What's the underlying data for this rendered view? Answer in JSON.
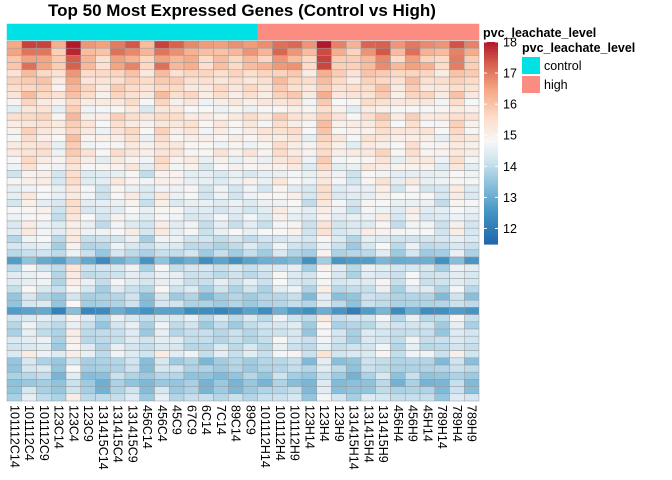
{
  "chart_data": {
    "type": "heatmap",
    "title": "Top 50 Most Expressed Genes (Control vs High)",
    "columns": [
      "101112C14",
      "101112C4",
      "101112C9",
      "123C14",
      "123C4",
      "123C9",
      "131415C14",
      "131415C4",
      "131415C9",
      "456C14",
      "456C4",
      "45C9",
      "67C9",
      "6C14",
      "7C14",
      "89C14",
      "89C9",
      "101112H14",
      "101112H4",
      "101112H9",
      "123H14",
      "123H4",
      "123H9",
      "131415H14",
      "131415H4",
      "131415H9",
      "456H4",
      "456H9",
      "45H14",
      "789H14",
      "789H4",
      "789H9"
    ],
    "annotation": {
      "name": "pvc_leachate_level",
      "values": [
        "control",
        "control",
        "control",
        "control",
        "control",
        "control",
        "control",
        "control",
        "control",
        "control",
        "control",
        "control",
        "control",
        "control",
        "control",
        "control",
        "control",
        "high",
        "high",
        "high",
        "high",
        "high",
        "high",
        "high",
        "high",
        "high",
        "high",
        "high",
        "high",
        "high",
        "high",
        "high"
      ],
      "levels": [
        {
          "label": "control",
          "color": "#00E1E6"
        },
        {
          "label": "high",
          "color": "#FA8C82"
        }
      ]
    },
    "row_count": 50,
    "column_offsets": [
      0.3,
      1.2,
      0.9,
      0.0,
      1.8,
      0.4,
      0.0,
      0.8,
      0.9,
      0.0,
      1.2,
      0.6,
      0.5,
      0.0,
      0.3,
      0.2,
      0.4,
      0.3,
      1.0,
      0.8,
      0.0,
      1.7,
      0.3,
      0.0,
      0.7,
      1.1,
      0.2,
      0.9,
      0.4,
      0.0,
      1.1,
      0.3
    ],
    "row_base": [
      16.4,
      16.0,
      15.6,
      15.7,
      15.4,
      15.3,
      15.2,
      15.2,
      14.9,
      14.6,
      15.1,
      14.9,
      14.9,
      14.8,
      14.7,
      14.9,
      14.7,
      14.6,
      14.3,
      14.5,
      14.3,
      14.4,
      14.3,
      14.3,
      14.3,
      14.2,
      14.4,
      14.0,
      13.9,
      13.7,
      12.6,
      14.0,
      14.0,
      14.1,
      13.9,
      13.5,
      13.6,
      12.3,
      14.0,
      13.8,
      13.8,
      13.9,
      13.9,
      14.2,
      13.5,
      13.6,
      13.4,
      13.2,
      13.4,
      13.8
    ],
    "color_scale": {
      "min": 11.5,
      "max": 18,
      "stops": [
        [
          11.5,
          "#2166AC"
        ],
        [
          12.5,
          "#4393C3"
        ],
        [
          13.5,
          "#92C5DE"
        ],
        [
          14.2,
          "#D1E5F0"
        ],
        [
          14.8,
          "#F7F7F7"
        ],
        [
          15.6,
          "#FDDBC7"
        ],
        [
          16.5,
          "#F4A582"
        ],
        [
          17.3,
          "#D6604D"
        ],
        [
          18,
          "#B2182B"
        ]
      ]
    },
    "legend_ticks": [
      12,
      13,
      14,
      15,
      16,
      17,
      18
    ]
  }
}
